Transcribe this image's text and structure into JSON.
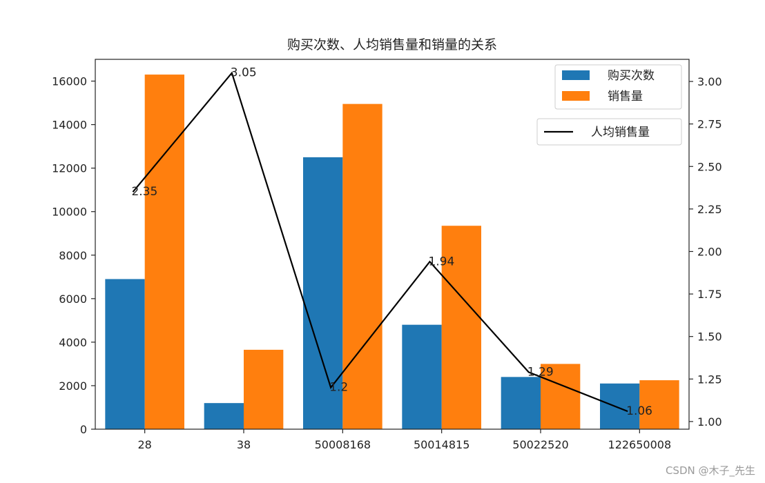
{
  "chart_data": {
    "type": "bar",
    "title": "购买次数、人均销售量和销量的关系",
    "categories": [
      "28",
      "38",
      "50008168",
      "50014815",
      "50022520",
      "122650008"
    ],
    "series": [
      {
        "name": "购买次数",
        "values": [
          6900,
          1200,
          12500,
          4800,
          2400,
          2100
        ],
        "color": "#1f77b4",
        "axis": "left"
      },
      {
        "name": "销售量",
        "values": [
          16300,
          3650,
          14950,
          9350,
          3000,
          2250
        ],
        "color": "#ff7f0e",
        "axis": "left"
      }
    ],
    "line_series": {
      "name": "人均销售量",
      "values": [
        2.35,
        3.05,
        1.2,
        1.94,
        1.29,
        1.06
      ],
      "labels": [
        "2.35",
        "3.05",
        "1.2",
        "1.94",
        "1.29",
        "1.06"
      ],
      "color": "#000000",
      "axis": "right"
    },
    "y_left": {
      "ylim": [
        0,
        17000
      ],
      "ticks": [
        0,
        2000,
        4000,
        6000,
        8000,
        10000,
        12000,
        14000,
        16000
      ]
    },
    "y_right": {
      "ylim": [
        0.955,
        3.13
      ],
      "ticks": [
        1.0,
        1.25,
        1.5,
        1.75,
        2.0,
        2.25,
        2.5,
        2.75,
        3.0
      ],
      "tick_labels": [
        "1.00",
        "1.25",
        "1.50",
        "1.75",
        "2.00",
        "2.25",
        "2.50",
        "2.75",
        "3.00"
      ]
    },
    "legend_placement": "top-right",
    "grid": false
  },
  "watermark": "CSDN @木子_先生"
}
